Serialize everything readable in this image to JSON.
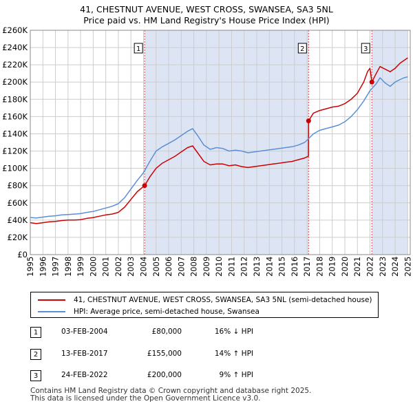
{
  "title_line1": "41, CHESTNUT AVENUE, WEST CROSS, SWANSEA, SA3 5NL",
  "title_line2": "Price paid vs. HM Land Registry's House Price Index (HPI)",
  "colors": {
    "price_paid": "#cc0000",
    "hpi": "#5b8fd4",
    "shade": "#dde5f5",
    "grid": "#cccccc",
    "marker_line": "#dd4444"
  },
  "chart_data": {
    "type": "line",
    "title": "Price paid vs. HM Land Registry's House Price Index (HPI)",
    "xlim": [
      1995.0,
      2025.2
    ],
    "ylim": [
      0,
      260000
    ],
    "y_ticks": [
      0,
      20000,
      40000,
      60000,
      80000,
      100000,
      120000,
      140000,
      160000,
      180000,
      200000,
      220000,
      240000,
      260000
    ],
    "y_tick_labels": [
      "£0",
      "£20K",
      "£40K",
      "£60K",
      "£80K",
      "£100K",
      "£120K",
      "£140K",
      "£160K",
      "£180K",
      "£200K",
      "£220K",
      "£240K",
      "£260K"
    ],
    "x_ticks": [
      1995,
      1996,
      1997,
      1998,
      1999,
      2000,
      2001,
      2002,
      2003,
      2004,
      2005,
      2006,
      2007,
      2008,
      2009,
      2010,
      2011,
      2012,
      2013,
      2014,
      2015,
      2016,
      2017,
      2018,
      2019,
      2020,
      2021,
      2022,
      2023,
      2024,
      2025
    ],
    "x_tick_labels": [
      "1995",
      "1996",
      "1997",
      "1998",
      "1999",
      "2000",
      "2001",
      "2002",
      "2003",
      "2004",
      "2005",
      "2006",
      "2007",
      "2008",
      "2009",
      "2010",
      "2011",
      "2012",
      "2013",
      "2014",
      "2015",
      "2016",
      "2017",
      "2018",
      "2019",
      "2020",
      "2021",
      "2022",
      "2023",
      "2024",
      "2025"
    ],
    "grid": true,
    "shaded_ranges": [
      [
        2004.09,
        2017.12
      ],
      [
        2022.15,
        2025.0
      ]
    ],
    "series": [
      {
        "name": "41, CHESTNUT AVENUE, WEST CROSS, SWANSEA, SA3 5NL (semi-detached house)",
        "color_key": "price_paid",
        "x": [
          1995.0,
          1995.5,
          1996.0,
          1996.5,
          1997.0,
          1997.5,
          1998.0,
          1998.5,
          1999.0,
          1999.5,
          2000.0,
          2000.5,
          2001.0,
          2001.5,
          2002.0,
          2002.5,
          2003.0,
          2003.5,
          2004.09,
          2004.5,
          2005.0,
          2005.5,
          2006.0,
          2006.5,
          2007.0,
          2007.5,
          2007.9,
          2008.3,
          2008.8,
          2009.3,
          2009.8,
          2010.3,
          2010.8,
          2011.3,
          2011.8,
          2012.3,
          2012.8,
          2013.3,
          2013.8,
          2014.3,
          2014.8,
          2015.3,
          2015.8,
          2016.3,
          2016.8,
          2017.11,
          2017.12,
          2017.5,
          2018.0,
          2018.5,
          2019.0,
          2019.5,
          2020.0,
          2020.5,
          2021.0,
          2021.5,
          2021.8,
          2022.0,
          2022.15,
          2022.5,
          2022.8,
          2023.2,
          2023.6,
          2024.0,
          2024.4,
          2024.7,
          2025.0
        ],
        "y": [
          37000,
          36000,
          37000,
          38000,
          38500,
          39500,
          40000,
          40000,
          40500,
          42000,
          43000,
          44500,
          46000,
          47000,
          49000,
          55000,
          64000,
          73000,
          80000,
          90000,
          100000,
          106000,
          110000,
          114000,
          119000,
          124000,
          126000,
          118000,
          108000,
          104000,
          105000,
          105000,
          103000,
          104000,
          102000,
          101000,
          102000,
          103000,
          104000,
          105000,
          106000,
          107000,
          108000,
          110000,
          112000,
          114000,
          155000,
          164000,
          167000,
          169000,
          171000,
          172000,
          175000,
          180000,
          187000,
          200000,
          212000,
          216000,
          200000,
          210000,
          218000,
          215000,
          212000,
          216000,
          222000,
          225000,
          228000
        ]
      },
      {
        "name": "HPI: Average price, semi-detached house, Swansea",
        "color_key": "hpi",
        "x": [
          1995.0,
          1995.5,
          1996.0,
          1996.5,
          1997.0,
          1997.5,
          1998.0,
          1998.5,
          1999.0,
          1999.5,
          2000.0,
          2000.5,
          2001.0,
          2001.5,
          2002.0,
          2002.5,
          2003.0,
          2003.5,
          2004.0,
          2004.5,
          2005.0,
          2005.5,
          2006.0,
          2006.5,
          2007.0,
          2007.5,
          2007.9,
          2008.3,
          2008.8,
          2009.3,
          2009.8,
          2010.3,
          2010.8,
          2011.3,
          2011.8,
          2012.3,
          2012.8,
          2013.3,
          2013.8,
          2014.3,
          2014.8,
          2015.3,
          2015.8,
          2016.3,
          2016.8,
          2017.1,
          2017.5,
          2018.0,
          2018.5,
          2019.0,
          2019.5,
          2020.0,
          2020.5,
          2021.0,
          2021.5,
          2022.0,
          2022.5,
          2022.8,
          2023.2,
          2023.6,
          2024.0,
          2024.4,
          2024.7,
          2025.0
        ],
        "y": [
          43000,
          42500,
          43500,
          44500,
          45000,
          46000,
          46500,
          47000,
          47500,
          49000,
          50000,
          52000,
          54000,
          56000,
          59000,
          66000,
          76000,
          86000,
          95000,
          108000,
          120000,
          125000,
          129000,
          133000,
          138000,
          143000,
          146000,
          138000,
          127000,
          122000,
          124000,
          123000,
          120000,
          121000,
          120000,
          118000,
          119000,
          120000,
          121000,
          122000,
          123000,
          124000,
          125000,
          127000,
          130000,
          134000,
          140000,
          144000,
          146000,
          148000,
          150000,
          154000,
          160000,
          168000,
          178000,
          190000,
          198000,
          205000,
          199000,
          195000,
          200000,
          203000,
          205000,
          206000
        ]
      }
    ],
    "sales": [
      {
        "label": "1",
        "x": 2004.09,
        "price": 80000,
        "date": "03-FEB-2004",
        "price_label": "£80,000",
        "hpi": "16% ↓ HPI"
      },
      {
        "label": "2",
        "x": 2017.12,
        "price": 155000,
        "date": "13-FEB-2017",
        "price_label": "£155,000",
        "hpi": "14% ↑ HPI"
      },
      {
        "label": "3",
        "x": 2022.15,
        "price": 200000,
        "date": "24-FEB-2022",
        "price_label": "£200,000",
        "hpi": "9% ↑ HPI"
      }
    ]
  },
  "legend": {
    "price_paid_label": "41, CHESTNUT AVENUE, WEST CROSS, SWANSEA, SA3 5NL (semi-detached house)",
    "hpi_label": "HPI: Average price, semi-detached house, Swansea"
  },
  "transactions": [
    {
      "num": "1",
      "date": "03-FEB-2004",
      "price": "£80,000",
      "hpi": "16% ↓ HPI"
    },
    {
      "num": "2",
      "date": "13-FEB-2017",
      "price": "£155,000",
      "hpi": "14% ↑ HPI"
    },
    {
      "num": "3",
      "date": "24-FEB-2022",
      "price": "£200,000",
      "hpi": "9% ↑ HPI"
    }
  ],
  "footer_line1": "Contains HM Land Registry data © Crown copyright and database right 2025.",
  "footer_line2": "This data is licensed under the Open Government Licence v3.0."
}
